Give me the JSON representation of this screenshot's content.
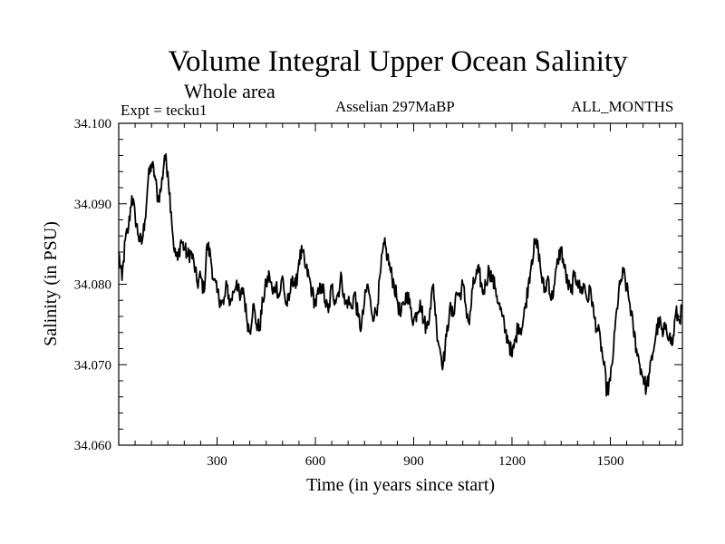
{
  "chart_data": {
    "type": "line",
    "title": "Volume Integral Upper Ocean Salinity",
    "subtitle": "Whole area",
    "experiment": "Expt = tecku1",
    "period": "Asselian 297MaBP",
    "months": "ALL_MONTHS",
    "xlabel": "Time (in years since start)",
    "ylabel": "Salinity (in PSU)",
    "xlim": [
      0,
      1720
    ],
    "ylim": [
      34.06,
      34.1
    ],
    "xticks": [
      300,
      600,
      900,
      1200,
      1500
    ],
    "xtick_labels": [
      "300",
      "600",
      "900",
      "1200",
      "1500"
    ],
    "yticks": [
      34.06,
      34.07,
      34.08,
      34.09,
      34.1
    ],
    "ytick_labels": [
      "34.060",
      "34.070",
      "34.080",
      "34.090",
      "34.100"
    ],
    "grid": false,
    "series": [
      {
        "name": "salinity",
        "color": "#000000",
        "x": [
          0,
          10,
          20,
          30,
          40,
          50,
          60,
          70,
          80,
          90,
          100,
          110,
          120,
          130,
          140,
          150,
          160,
          170,
          180,
          190,
          200,
          210,
          220,
          230,
          240,
          250,
          260,
          270,
          280,
          290,
          300,
          310,
          320,
          330,
          340,
          350,
          360,
          370,
          380,
          390,
          400,
          410,
          420,
          430,
          440,
          450,
          460,
          470,
          480,
          490,
          500,
          510,
          520,
          530,
          540,
          550,
          560,
          570,
          580,
          590,
          600,
          610,
          620,
          630,
          640,
          650,
          660,
          670,
          680,
          690,
          700,
          710,
          720,
          730,
          740,
          750,
          760,
          770,
          780,
          790,
          800,
          810,
          820,
          830,
          840,
          850,
          860,
          870,
          880,
          890,
          900,
          910,
          920,
          930,
          940,
          950,
          960,
          970,
          980,
          990,
          1000,
          1010,
          1020,
          1030,
          1040,
          1050,
          1060,
          1070,
          1080,
          1090,
          1100,
          1110,
          1120,
          1130,
          1140,
          1150,
          1160,
          1170,
          1180,
          1190,
          1200,
          1210,
          1220,
          1230,
          1240,
          1250,
          1260,
          1270,
          1280,
          1290,
          1300,
          1310,
          1320,
          1330,
          1340,
          1350,
          1360,
          1370,
          1380,
          1390,
          1400,
          1410,
          1420,
          1430,
          1440,
          1450,
          1460,
          1470,
          1480,
          1490,
          1500,
          1510,
          1520,
          1530,
          1540,
          1550,
          1560,
          1570,
          1580,
          1590,
          1600,
          1610,
          1620,
          1630,
          1640,
          1650,
          1660,
          1670,
          1680,
          1690,
          1700,
          1710,
          1720
        ],
        "values": [
          34.084,
          34.0805,
          34.0855,
          34.087,
          34.091,
          34.0885,
          34.086,
          34.085,
          34.088,
          34.093,
          34.095,
          34.0935,
          34.0905,
          34.092,
          34.096,
          34.094,
          34.089,
          34.084,
          34.083,
          34.0855,
          34.0845,
          34.0835,
          34.084,
          34.0825,
          34.08,
          34.081,
          34.079,
          34.085,
          34.0835,
          34.0805,
          34.079,
          34.078,
          34.0775,
          34.08,
          34.0775,
          34.079,
          34.0805,
          34.078,
          34.0795,
          34.076,
          34.074,
          34.0775,
          34.075,
          34.0745,
          34.078,
          34.08,
          34.0812,
          34.0788,
          34.08,
          34.0785,
          34.081,
          34.0775,
          34.078,
          34.081,
          34.0795,
          34.083,
          34.084,
          34.082,
          34.081,
          34.079,
          34.0775,
          34.0788,
          34.08,
          34.0778,
          34.0765,
          34.0798,
          34.078,
          34.079,
          34.081,
          34.0775,
          34.078,
          34.077,
          34.079,
          34.076,
          34.0745,
          34.0778,
          34.08,
          34.077,
          34.076,
          34.0775,
          34.082,
          34.085,
          34.0835,
          34.0815,
          34.08,
          34.078,
          34.076,
          34.0775,
          34.079,
          34.077,
          34.0755,
          34.0765,
          34.078,
          34.0755,
          34.0745,
          34.077,
          34.08,
          34.0745,
          34.072,
          34.07,
          34.0735,
          34.077,
          34.076,
          34.079,
          34.0785,
          34.08,
          34.077,
          34.075,
          34.0795,
          34.081,
          34.0815,
          34.079,
          34.08,
          34.082,
          34.0805,
          34.0795,
          34.0775,
          34.076,
          34.074,
          34.073,
          34.071,
          34.073,
          34.075,
          34.0745,
          34.077,
          34.08,
          34.083,
          34.085,
          34.0845,
          34.081,
          34.079,
          34.081,
          34.078,
          34.08,
          34.083,
          34.0845,
          34.082,
          34.08,
          34.079,
          34.081,
          34.0805,
          34.079,
          34.08,
          34.078,
          34.0795,
          34.076,
          34.0745,
          34.073,
          34.07,
          34.0665,
          34.068,
          34.072,
          34.077,
          34.08,
          34.0815,
          34.0795,
          34.0775,
          34.0745,
          34.072,
          34.07,
          34.0685,
          34.067,
          34.069,
          34.0715,
          34.074,
          34.0755,
          34.0735,
          34.075,
          34.0735,
          34.0725,
          34.0765,
          34.0755,
          34.077
        ]
      }
    ]
  }
}
